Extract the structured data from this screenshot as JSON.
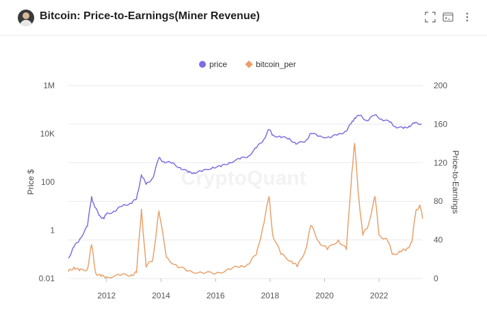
{
  "header": {
    "title": "Bitcoin: Price-to-Earnings(Miner Revenue)",
    "icons": [
      "avatar",
      "fullscreen-icon",
      "terminal-icon",
      "more-vertical-icon"
    ]
  },
  "watermark": "CryptoQuant",
  "colors": {
    "price": "#7b6ee0",
    "bitcoin_per": "#e8a06a",
    "grid": "#e9e9e9",
    "axis_text": "#555555"
  },
  "chart_data": {
    "type": "line",
    "title": "Bitcoin: Price-to-Earnings(Miner Revenue)",
    "legend_position": "top-center",
    "grid": true,
    "x_ticks": [
      "2012",
      "2014",
      "2016",
      "2018",
      "2020",
      "2022"
    ],
    "x_range": [
      2010.6,
      2023.6
    ],
    "y_left": {
      "label": "Price $",
      "scale": "log",
      "range": [
        0.01,
        1000000
      ],
      "ticks": [
        "1M",
        "10K",
        "100",
        "1",
        "0.01"
      ]
    },
    "y_right": {
      "label": "Price-to-Earnings",
      "scale": "linear",
      "range": [
        0,
        200
      ],
      "ticks": [
        "200",
        "160",
        "120",
        "80",
        "40",
        "0"
      ]
    },
    "series": [
      {
        "name": "price",
        "axis": "left",
        "color": "#7b6ee0",
        "marker": "circle",
        "x": [
          2010.6,
          2010.8,
          2011.0,
          2011.3,
          2011.45,
          2011.55,
          2011.75,
          2011.9,
          2012.0,
          2012.3,
          2012.6,
          2012.9,
          2013.1,
          2013.28,
          2013.45,
          2013.7,
          2013.92,
          2014.1,
          2014.4,
          2014.7,
          2015.0,
          2015.2,
          2015.5,
          2015.9,
          2016.2,
          2016.5,
          2016.9,
          2017.2,
          2017.5,
          2017.75,
          2017.96,
          2018.1,
          2018.4,
          2018.7,
          2018.95,
          2019.3,
          2019.5,
          2019.8,
          2020.2,
          2020.5,
          2020.8,
          2021.0,
          2021.1,
          2021.3,
          2021.55,
          2021.85,
          2022.1,
          2022.4,
          2022.6,
          2022.9,
          2023.1,
          2023.3,
          2023.55
        ],
        "y": [
          0.07,
          0.2,
          0.4,
          1.5,
          25,
          10,
          4,
          3,
          5,
          6,
          11,
          13,
          20,
          200,
          80,
          150,
          1000,
          700,
          600,
          400,
          250,
          250,
          270,
          420,
          430,
          650,
          900,
          1200,
          2600,
          5500,
          15000,
          9000,
          7000,
          6500,
          3700,
          5000,
          10500,
          8000,
          7000,
          9500,
          13000,
          30000,
          45000,
          58000,
          35000,
          60000,
          40000,
          30000,
          20000,
          16500,
          21000,
          27000,
          26500
        ]
      },
      {
        "name": "bitcoin_per",
        "axis": "right",
        "color": "#e8a06a",
        "marker": "diamond",
        "x": [
          2010.6,
          2010.8,
          2011.0,
          2011.3,
          2011.45,
          2011.6,
          2011.8,
          2012.0,
          2012.5,
          2012.9,
          2013.1,
          2013.28,
          2013.45,
          2013.7,
          2013.92,
          2014.2,
          2014.6,
          2015.0,
          2015.5,
          2016.0,
          2016.5,
          2016.9,
          2017.2,
          2017.5,
          2017.75,
          2017.96,
          2018.1,
          2018.4,
          2018.8,
          2019.0,
          2019.3,
          2019.5,
          2019.8,
          2020.1,
          2020.5,
          2020.8,
          2021.0,
          2021.1,
          2021.25,
          2021.4,
          2021.6,
          2021.85,
          2022.0,
          2022.3,
          2022.5,
          2022.8,
          2023.0,
          2023.2,
          2023.35,
          2023.5,
          2023.6
        ],
        "y": [
          7,
          12,
          8,
          10,
          35,
          6,
          2,
          2,
          3,
          4,
          6,
          72,
          12,
          20,
          70,
          22,
          12,
          8,
          6,
          5,
          10,
          12,
          15,
          25,
          55,
          85,
          45,
          25,
          18,
          12,
          30,
          55,
          38,
          30,
          40,
          30,
          110,
          140,
          85,
          45,
          55,
          85,
          45,
          40,
          25,
          28,
          30,
          38,
          70,
          76,
          62
        ]
      }
    ]
  }
}
